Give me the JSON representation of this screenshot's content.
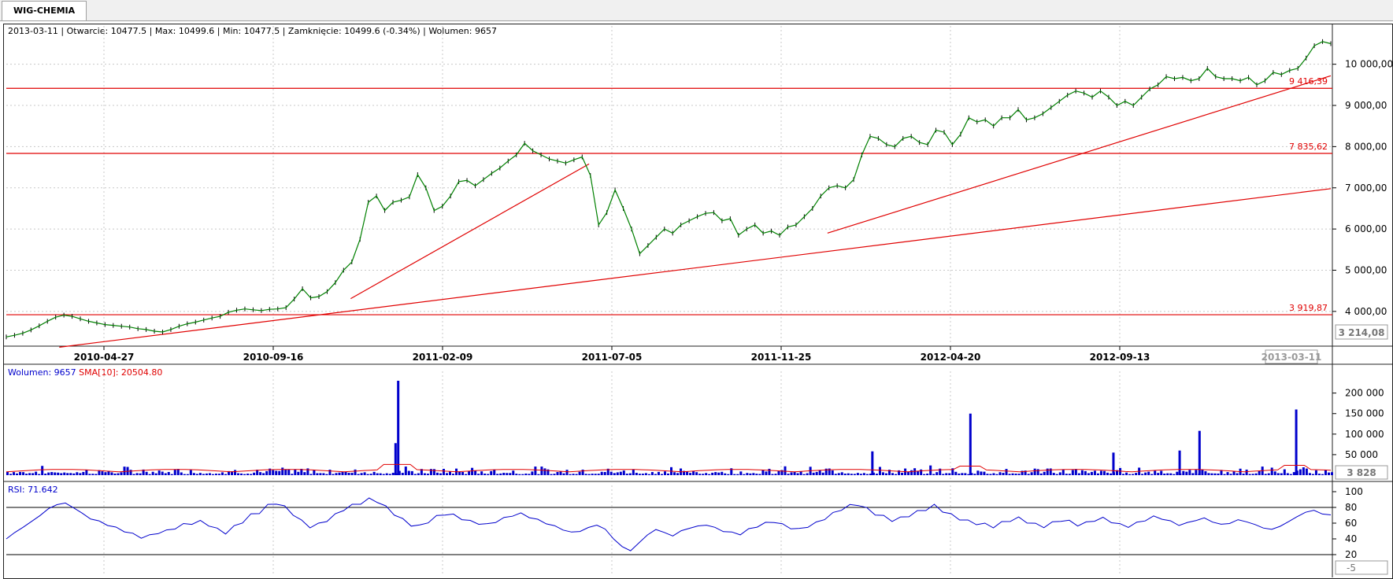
{
  "tab": {
    "label": "WIG-CHEMIA"
  },
  "ohlc": {
    "text": "2013-03-11 | Otwarcie: 10477.5 | Max: 10499.6 | Min: 10477.5 | Zamknięcie: 10499.6 (-0.34%)  | Wolumen: 9657"
  },
  "volume_legend": {
    "volume": "Wolumen: 9657",
    "sma": "SMA[10]: 20504.80"
  },
  "rsi_legend": {
    "text": "RSI: 71.642"
  },
  "colors": {
    "price": "#008000",
    "volume": "#0000cc",
    "sma": "#e00000",
    "rsi": "#0000cc",
    "levels": "#e00000",
    "grid": "#c8c8c8"
  },
  "chart_data": [
    {
      "type": "line",
      "name": "price",
      "ylim": [
        3214.08,
        10700
      ],
      "yticks": [
        4000,
        5000,
        6000,
        7000,
        8000,
        9000,
        10000
      ],
      "ytick_labels": [
        "4 000,00",
        "5 000,00",
        "6 000,00",
        "7 000,00",
        "8 000,00",
        "9 000,00",
        "10 000,00"
      ],
      "ymin_label": "3 214,08",
      "xticks": [
        "2010-04-27",
        "2010-09-16",
        "2011-02-09",
        "2011-07-05",
        "2011-11-25",
        "2012-04-20",
        "2012-09-13"
      ],
      "last_date_label": "2013-03-11",
      "grid": true,
      "horizontal_levels": [
        {
          "value": 9416.39,
          "label": "9 416,39"
        },
        {
          "value": 7835.62,
          "label": "7 835,62"
        },
        {
          "value": 3919.87,
          "label": "3 919,87"
        }
      ],
      "trendlines": [
        {
          "x1": 0.04,
          "y1": 3130,
          "x2": 1.0,
          "y2": 6980
        },
        {
          "x1": 0.26,
          "y1": 4310,
          "x2": 0.44,
          "y2": 7580
        },
        {
          "x1": 0.62,
          "y1": 5900,
          "x2": 1.0,
          "y2": 9720
        }
      ],
      "series": [
        {
          "values": [
            3380,
            3420,
            3470,
            3550,
            3650,
            3760,
            3860,
            3910,
            3880,
            3820,
            3760,
            3720,
            3680,
            3660,
            3640,
            3620,
            3580,
            3560,
            3520,
            3500,
            3560,
            3640,
            3700,
            3740,
            3790,
            3840,
            3880,
            3980,
            4030,
            4060,
            4040,
            4020,
            4050,
            4060,
            4090,
            4300,
            4550,
            4330,
            4360,
            4480,
            4700,
            5000,
            5200,
            5750,
            6650,
            6800,
            6450,
            6650,
            6700,
            6780,
            7320,
            7000,
            6450,
            6550,
            6800,
            7150,
            7180,
            7050,
            7200,
            7350,
            7480,
            7650,
            7800,
            8080,
            7900,
            7800,
            7700,
            7650,
            7600,
            7680,
            7750,
            7300,
            6100,
            6400,
            6950,
            6500,
            6000,
            5400,
            5600,
            5800,
            6000,
            5900,
            6100,
            6200,
            6300,
            6380,
            6400,
            6200,
            6250,
            5850,
            6000,
            6100,
            5900,
            5950,
            5850,
            6050,
            6100,
            6300,
            6500,
            6800,
            7000,
            7050,
            7000,
            7200,
            7800,
            8250,
            8200,
            8050,
            8000,
            8200,
            8250,
            8100,
            8050,
            8400,
            8350,
            8050,
            8300,
            8700,
            8600,
            8650,
            8500,
            8700,
            8700,
            8900,
            8650,
            8700,
            8800,
            8950,
            9100,
            9250,
            9350,
            9300,
            9200,
            9350,
            9200,
            9000,
            9100,
            9000,
            9200,
            9400,
            9500,
            9700,
            9650,
            9680,
            9600,
            9650,
            9900,
            9700,
            9650,
            9650,
            9600,
            9680,
            9500,
            9600,
            9800,
            9750,
            9850,
            9900,
            10150,
            10450,
            10550,
            10500
          ]
        }
      ]
    },
    {
      "type": "bar",
      "name": "volume",
      "ylim": [
        0,
        230000
      ],
      "yticks": [
        50000,
        100000,
        150000,
        200000
      ],
      "ytick_labels": [
        "50 000",
        "100 000",
        "150 000",
        "200 000"
      ],
      "ymin_label": "3 828",
      "spikes": [
        {
          "x": 0.295,
          "value": 230000
        },
        {
          "x": 0.727,
          "value": 150000
        },
        {
          "x": 0.973,
          "value": 160000
        },
        {
          "x": 0.9,
          "value": 108000
        },
        {
          "x": 0.885,
          "value": 60000
        },
        {
          "x": 0.835,
          "value": 55000
        },
        {
          "x": 0.293,
          "value": 78000
        },
        {
          "x": 0.653,
          "value": 58000
        }
      ]
    },
    {
      "type": "line",
      "name": "RSI",
      "ylim": [
        -5,
        100
      ],
      "yticks": [
        20,
        40,
        60,
        80,
        100
      ],
      "ytick_labels": [
        "20",
        "40",
        "60",
        "80",
        "100"
      ],
      "ymin_label": "-5",
      "horizontal_levels": [
        {
          "value": 80
        },
        {
          "value": 20
        }
      ],
      "series": [
        {
          "values": [
            40,
            48,
            55,
            62,
            70,
            78,
            84,
            85,
            80,
            72,
            66,
            62,
            58,
            54,
            50,
            46,
            42,
            44,
            48,
            50,
            54,
            58,
            60,
            62,
            58,
            52,
            48,
            55,
            62,
            70,
            74,
            82,
            86,
            80,
            72,
            62,
            56,
            58,
            64,
            70,
            78,
            82,
            86,
            90,
            88,
            80,
            72,
            64,
            58,
            56,
            62,
            68,
            72,
            70,
            66,
            62,
            60,
            58,
            62,
            66,
            70,
            72,
            68,
            64,
            60,
            56,
            52,
            48,
            50,
            54,
            58,
            52,
            40,
            30,
            25,
            35,
            45,
            52,
            48,
            44,
            50,
            54,
            56,
            58,
            54,
            50,
            48,
            46,
            52,
            56,
            60,
            62,
            58,
            54,
            52,
            56,
            60,
            66,
            72,
            78,
            82,
            84,
            78,
            72,
            68,
            64,
            66,
            70,
            74,
            78,
            82,
            76,
            70,
            66,
            62,
            60,
            58,
            56,
            60,
            64,
            66,
            62,
            58,
            56,
            60,
            64,
            62,
            58,
            60,
            64,
            66,
            62,
            58,
            56,
            60,
            64,
            68,
            66,
            62,
            58,
            60,
            64,
            66,
            62,
            58,
            60,
            64,
            62,
            58,
            54,
            52,
            56,
            62,
            68,
            74,
            76,
            72,
            70
          ]
        }
      ]
    }
  ]
}
